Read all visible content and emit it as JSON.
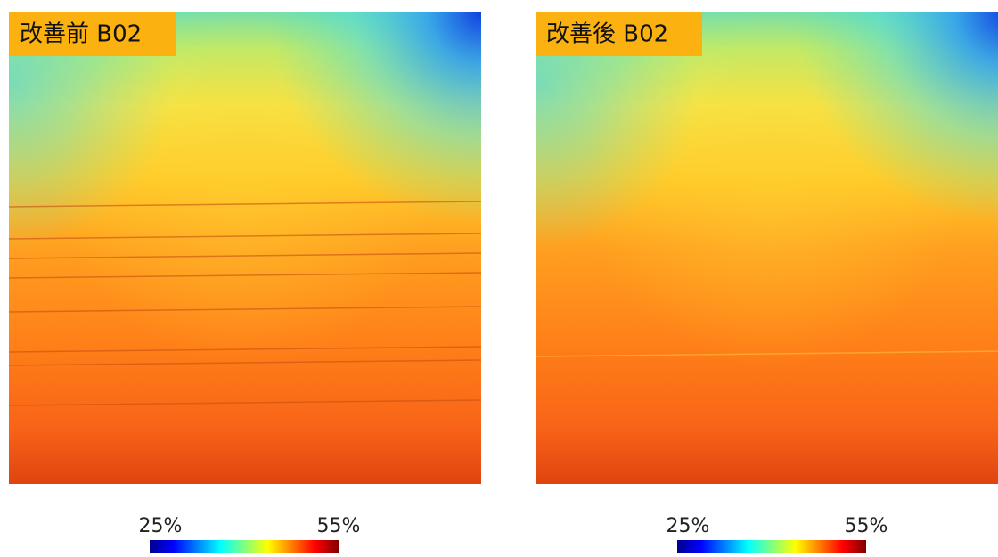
{
  "panels": [
    {
      "label": "改善前 B02",
      "colorbar": {
        "min_label": "25%",
        "max_label": "55%"
      }
    },
    {
      "label": "改善後 B02",
      "colorbar": {
        "min_label": "25%",
        "max_label": "55%"
      }
    }
  ]
}
